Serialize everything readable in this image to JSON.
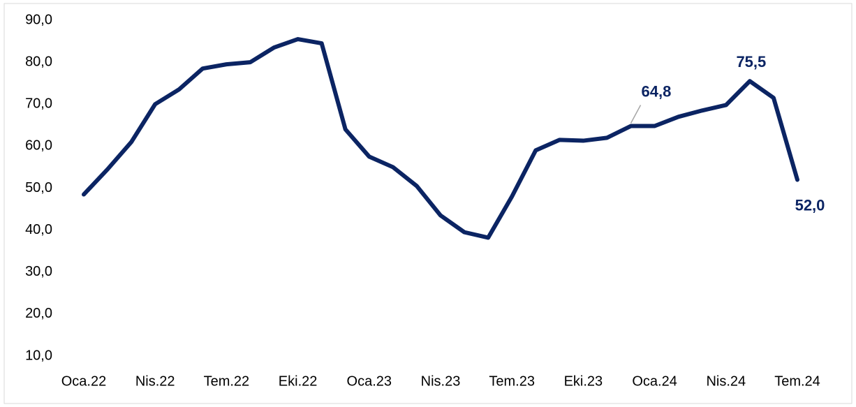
{
  "chart_data": {
    "type": "line",
    "categories": [
      "Oca.22",
      null,
      null,
      "Nis.22",
      null,
      null,
      "Tem.22",
      null,
      null,
      "Eki.22",
      null,
      null,
      "Oca.23",
      null,
      null,
      "Nis.23",
      null,
      null,
      "Tem.23",
      null,
      null,
      "Eki.23",
      null,
      null,
      "Oca.24",
      null,
      null,
      "Nis.24",
      null,
      null,
      "Tem.24"
    ],
    "series": [
      {
        "color": "#0b2463",
        "values": [
          48.5,
          54.5,
          61,
          70,
          73.5,
          78.5,
          79.5,
          80,
          83.5,
          85.5,
          84.5,
          64,
          57.5,
          55,
          50.5,
          43.5,
          39.5,
          38.2,
          48,
          59,
          61.5,
          61.3,
          62,
          64.8,
          64.8,
          67,
          68.5,
          69.8,
          75.5,
          71.5,
          52
        ],
        "value_labels": [
          null,
          null,
          null,
          null,
          null,
          null,
          null,
          null,
          null,
          null,
          null,
          null,
          null,
          null,
          null,
          null,
          null,
          null,
          null,
          null,
          null,
          null,
          null,
          "64,8",
          null,
          null,
          null,
          null,
          "75,5",
          null,
          "52,0"
        ]
      }
    ],
    "ylim": [
      10,
      90
    ],
    "yticks": [
      {
        "value": 10,
        "label": "10,0"
      },
      {
        "value": 20,
        "label": "20,0"
      },
      {
        "value": 30,
        "label": "30,0"
      },
      {
        "value": 40,
        "label": "40,0"
      },
      {
        "value": 50,
        "label": "50,0"
      },
      {
        "value": 60,
        "label": "60,0"
      },
      {
        "value": 70,
        "label": "70,0"
      },
      {
        "value": 80,
        "label": "80,0"
      },
      {
        "value": 90,
        "label": "90,0"
      }
    ],
    "grid": false
  }
}
